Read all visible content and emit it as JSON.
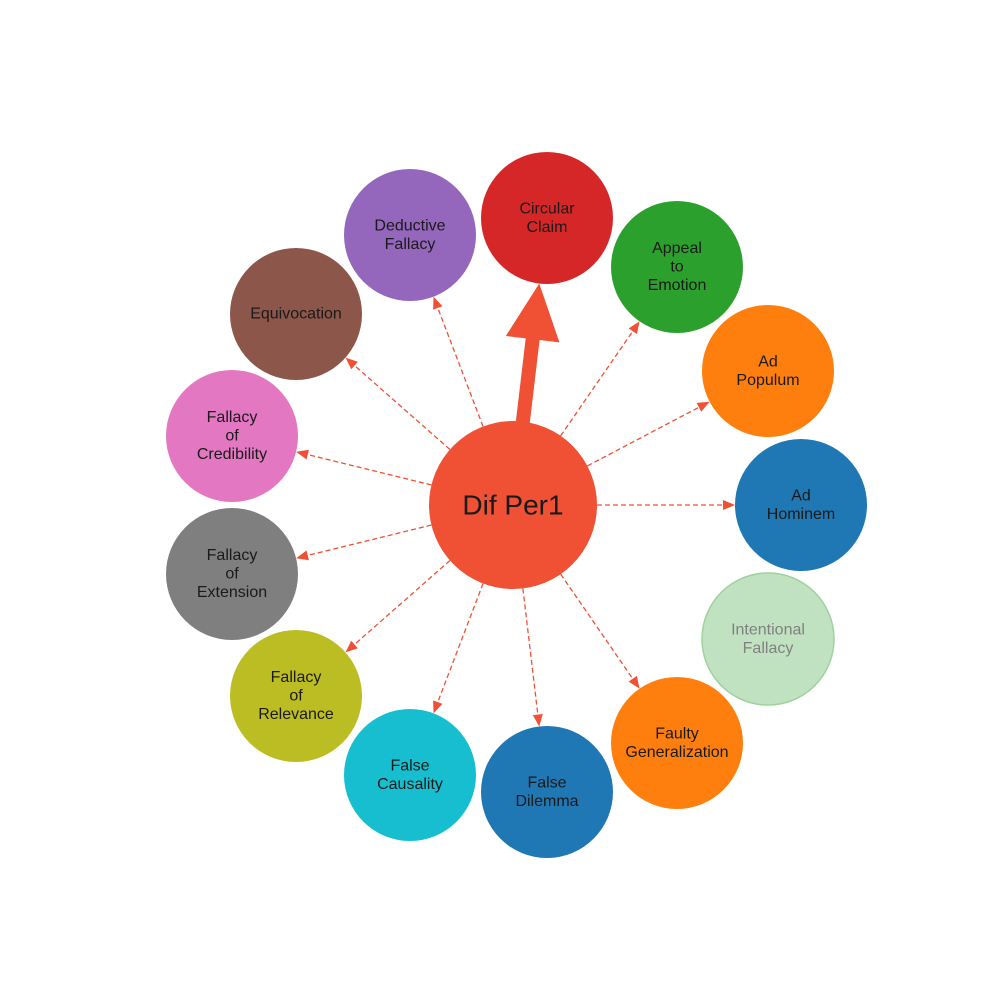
{
  "diagram": {
    "type": "radial-mindmap",
    "edge_color": "#f05033",
    "center": {
      "label": "Dif Per1",
      "color": "#f05033"
    },
    "nodes": [
      {
        "id": "circular-claim",
        "lines": [
          "Circular",
          "Claim"
        ],
        "color": "#d62728",
        "edge": "bold"
      },
      {
        "id": "appeal-to-emotion",
        "lines": [
          "Appeal",
          "to",
          "Emotion"
        ],
        "color": "#2ca02c",
        "edge": "dashed"
      },
      {
        "id": "ad-populum",
        "lines": [
          "Ad",
          "Populum"
        ],
        "color": "#ff7f0e",
        "edge": "dashed"
      },
      {
        "id": "ad-hominem",
        "lines": [
          "Ad",
          "Hominem"
        ],
        "color": "#1f77b4",
        "edge": "dashed"
      },
      {
        "id": "intentional-fallacy",
        "lines": [
          "Intentional",
          "Fallacy"
        ],
        "color": "#c1e2c0",
        "edge": "none",
        "faded": true
      },
      {
        "id": "faulty-generalization",
        "lines": [
          "Faulty",
          "Generalization"
        ],
        "color": "#ff7f0e",
        "edge": "dashed"
      },
      {
        "id": "false-dilemma",
        "lines": [
          "False",
          "Dilemma"
        ],
        "color": "#1f77b4",
        "edge": "dashed"
      },
      {
        "id": "false-causality",
        "lines": [
          "False",
          "Causality"
        ],
        "color": "#17becf",
        "edge": "dashed"
      },
      {
        "id": "fallacy-of-relevance",
        "lines": [
          "Fallacy",
          "of",
          "Relevance"
        ],
        "color": "#bcbd22",
        "edge": "dashed"
      },
      {
        "id": "fallacy-of-extension",
        "lines": [
          "Fallacy",
          "of",
          "Extension"
        ],
        "color": "#7f7f7f",
        "edge": "dashed"
      },
      {
        "id": "fallacy-of-credibility",
        "lines": [
          "Fallacy",
          "of",
          "Credibility"
        ],
        "color": "#e377c2",
        "edge": "dashed"
      },
      {
        "id": "equivocation",
        "lines": [
          "Equivocation"
        ],
        "color": "#8c564b",
        "edge": "dashed"
      },
      {
        "id": "deductive-fallacy",
        "lines": [
          "Deductive",
          "Fallacy"
        ],
        "color": "#9467bd",
        "edge": "dashed"
      }
    ]
  }
}
